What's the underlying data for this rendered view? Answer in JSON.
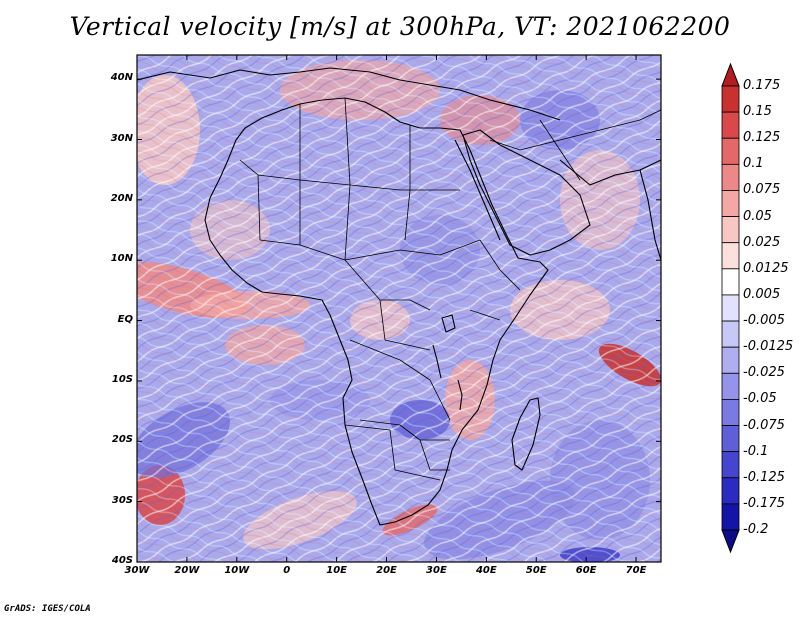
{
  "title": "Vertical velocity [m/s] at 300hPa, VT: 2021062200",
  "credit": "GrADS: IGES/COLA",
  "chart_data": {
    "type": "heatmap",
    "field": "Vertical velocity",
    "units": "m/s",
    "level": "300hPa",
    "valid_time": "2021062200",
    "x_ticks": [
      {
        "value": -30,
        "label": "30W"
      },
      {
        "value": -20,
        "label": "20W"
      },
      {
        "value": -10,
        "label": "10W"
      },
      {
        "value": 0,
        "label": "0"
      },
      {
        "value": 10,
        "label": "10E"
      },
      {
        "value": 20,
        "label": "20E"
      },
      {
        "value": 30,
        "label": "30E"
      },
      {
        "value": 40,
        "label": "40E"
      },
      {
        "value": 50,
        "label": "50E"
      },
      {
        "value": 60,
        "label": "60E"
      },
      {
        "value": 70,
        "label": "70E"
      }
    ],
    "y_ticks": [
      {
        "value": 40,
        "label": "40N"
      },
      {
        "value": 30,
        "label": "30N"
      },
      {
        "value": 20,
        "label": "20N"
      },
      {
        "value": 10,
        "label": "10N"
      },
      {
        "value": 0,
        "label": "EQ"
      },
      {
        "value": -10,
        "label": "10S"
      },
      {
        "value": -20,
        "label": "20S"
      },
      {
        "value": -30,
        "label": "30S"
      },
      {
        "value": -40,
        "label": "40S"
      }
    ],
    "xlim": [
      -30,
      75
    ],
    "ylim": [
      -40,
      44
    ],
    "colorbar": {
      "labels": [
        "0.175",
        "0.15",
        "0.125",
        "0.1",
        "0.075",
        "0.05",
        "0.025",
        "0.0125",
        "0.005",
        "-0.005",
        "-0.0125",
        "-0.025",
        "-0.05",
        "-0.075",
        "-0.1",
        "-0.125",
        "-0.175",
        "-0.2"
      ],
      "colors": [
        "#b51c22",
        "#c8312f",
        "#d9484a",
        "#e46868",
        "#ed8888",
        "#f3a8a5",
        "#f8c7c3",
        "#fbe0dd",
        "#ffffff",
        "#e2e2fc",
        "#c8c8f6",
        "#aeaef0",
        "#9494ea",
        "#7a7ae2",
        "#5f5fda",
        "#4545cf",
        "#2b2bc2",
        "#1414a8",
        "#0c0c8a"
      ]
    }
  }
}
